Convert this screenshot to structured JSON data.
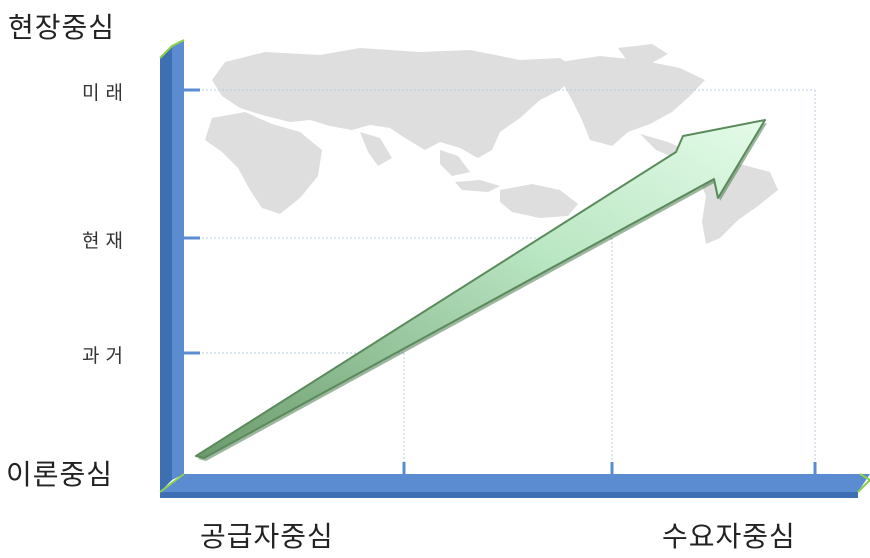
{
  "diagram": {
    "y_top_label": "현장중심",
    "y_bottom_label": "이론중심",
    "x_left_label": "공급자중심",
    "x_right_label": "수요자중심",
    "time_levels": [
      "미래",
      "현재",
      "과거"
    ]
  },
  "colors": {
    "axis_blue": "#5b8bd0",
    "axis_green_edge": "#8ad24a",
    "map_gray": "#dedede",
    "arrow_green": "#d3f5dc",
    "arrow_dark": "#5b8a5c",
    "grid": "#b9cbe6"
  }
}
